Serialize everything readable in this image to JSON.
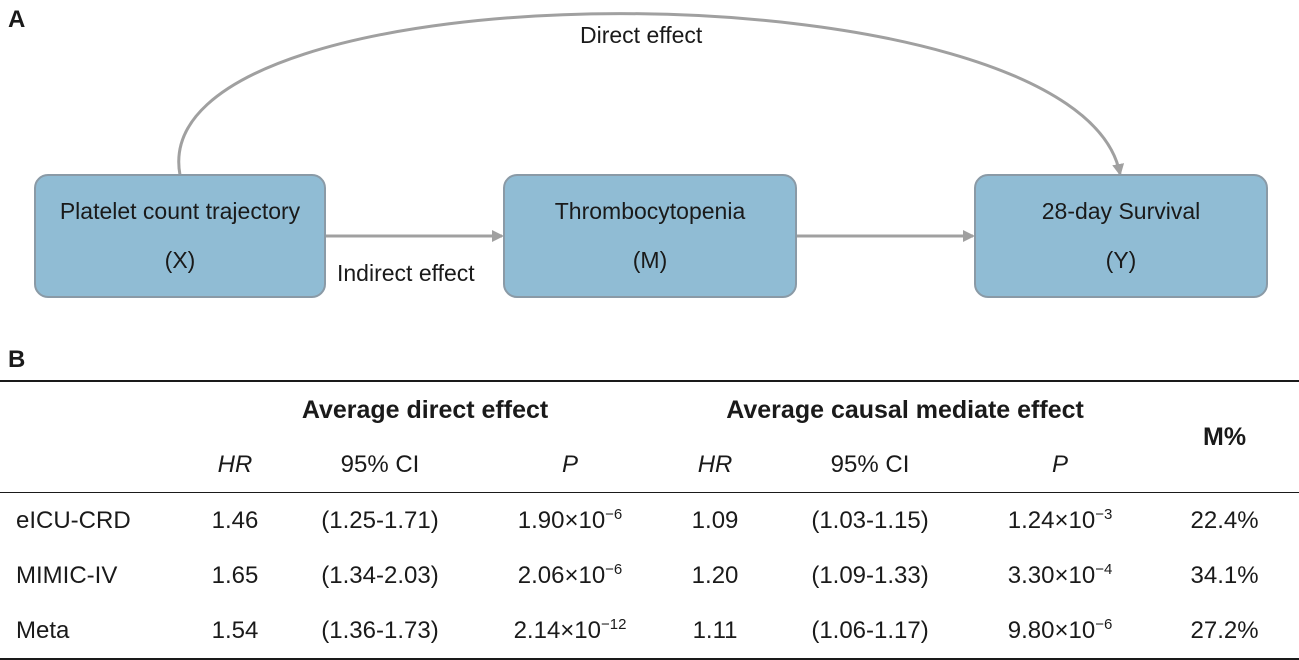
{
  "panel_a_label": "A",
  "panel_b_label": "B",
  "diagram": {
    "nodes": [
      {
        "title": "Platelet count trajectory",
        "symbol": "(X)"
      },
      {
        "title": "Thrombocytopenia",
        "symbol": "(M)"
      },
      {
        "title": "28-day Survival",
        "symbol": "(Y)"
      }
    ],
    "edges": {
      "direct_label": "Direct effect",
      "indirect_label": "Indirect effect"
    },
    "colors": {
      "box_fill": "#90bcd4",
      "box_border": "#8a9aa6",
      "arrow": "#a0a0a0"
    }
  },
  "table": {
    "group_headers": {
      "direct": "Average direct effect",
      "mediate": "Average causal mediate effect",
      "m_percent": "M%"
    },
    "sub_headers": {
      "hr": "HR",
      "ci": "95% CI",
      "p": "P"
    },
    "rows": [
      {
        "label": "eICU-CRD",
        "direct_hr": "1.46",
        "direct_ci": "(1.25-1.71)",
        "direct_p_base": "1.90×10",
        "direct_p_exp": "−6",
        "mediate_hr": "1.09",
        "mediate_ci": "(1.03-1.15)",
        "mediate_p_base": "1.24×10",
        "mediate_p_exp": "−3",
        "m_percent": "22.4%"
      },
      {
        "label": "MIMIC-IV",
        "direct_hr": "1.65",
        "direct_ci": "(1.34-2.03)",
        "direct_p_base": "2.06×10",
        "direct_p_exp": "−6",
        "mediate_hr": "1.20",
        "mediate_ci": "(1.09-1.33)",
        "mediate_p_base": "3.30×10",
        "mediate_p_exp": "−4",
        "m_percent": "34.1%"
      },
      {
        "label": "Meta",
        "direct_hr": "1.54",
        "direct_ci": "(1.36-1.73)",
        "direct_p_base": "2.14×10",
        "direct_p_exp": "−12",
        "mediate_hr": "1.11",
        "mediate_ci": "(1.06-1.17)",
        "mediate_p_base": "9.80×10",
        "mediate_p_exp": "−6",
        "m_percent": "27.2%"
      }
    ]
  }
}
